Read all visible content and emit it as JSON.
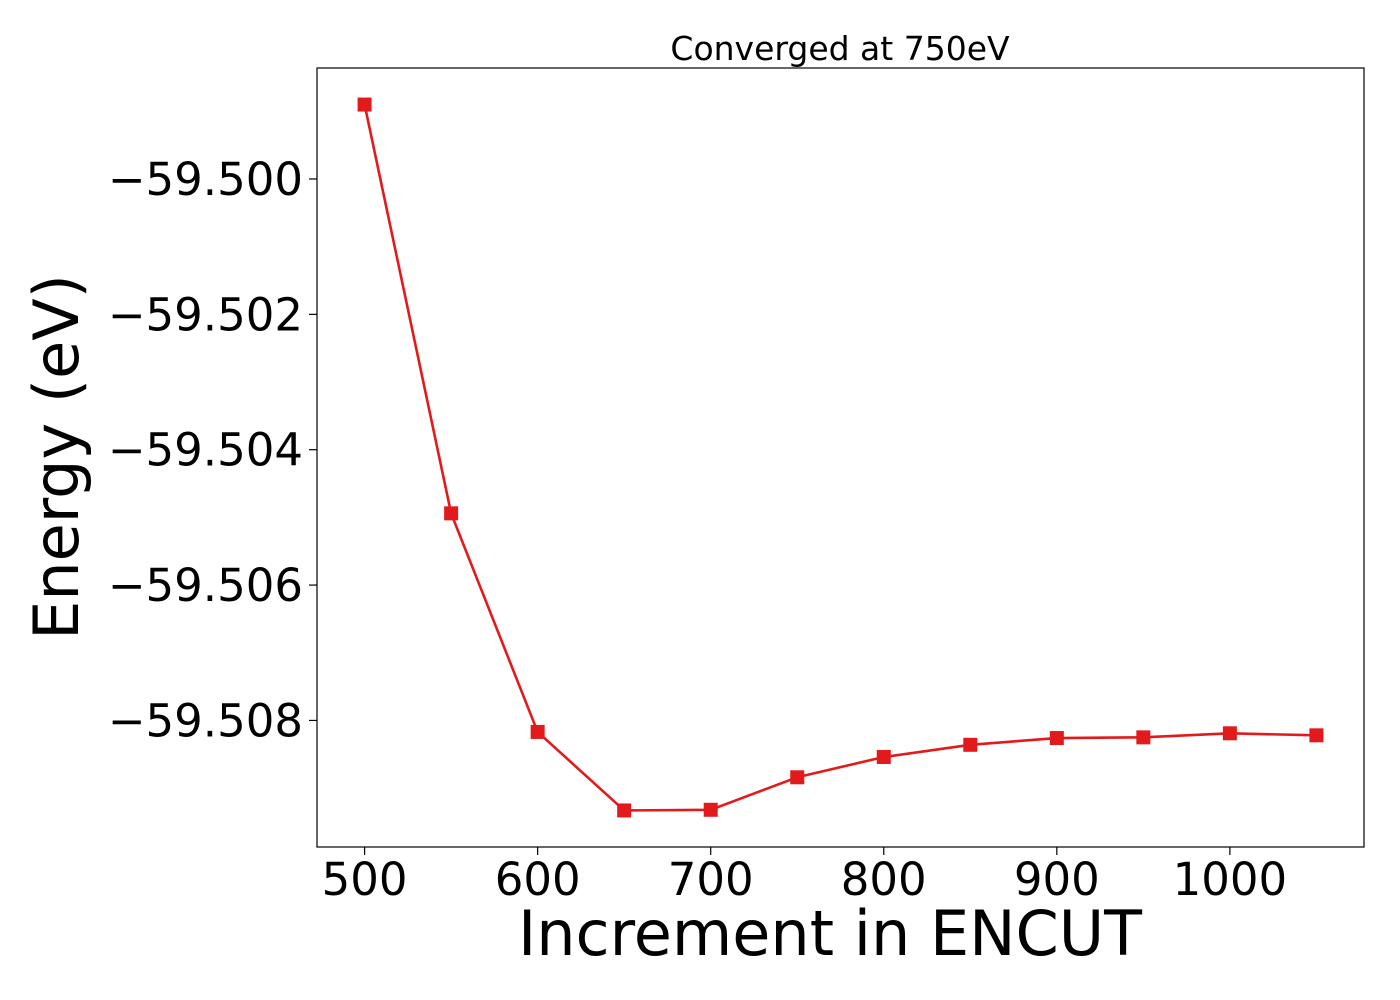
{
  "chart_data": {
    "type": "line",
    "title": "Converged at 750eV",
    "xlabel": "Increment in ENCUT",
    "ylabel": "Energy (eV)",
    "x": [
      500,
      550,
      600,
      650,
      700,
      750,
      800,
      850,
      900,
      950,
      1000,
      1050
    ],
    "series": [
      {
        "values": [
          -59.4989,
          -59.50494,
          -59.50817,
          -59.50933,
          -59.50932,
          -59.50884,
          -59.50854,
          -59.50836,
          -59.50826,
          -59.50825,
          -59.50819,
          -59.50822
        ],
        "color": "#e31a1c",
        "marker": "square"
      }
    ],
    "xlim": [
      472.5,
      1077.5
    ],
    "ylim": [
      -59.50987,
      -59.49836
    ],
    "xticks": [
      500,
      600,
      700,
      800,
      900,
      1000
    ],
    "yticks": [
      -59.5,
      -59.502,
      -59.504,
      -59.506,
      -59.508
    ],
    "xtick_labels": [
      "500",
      "600",
      "700",
      "800",
      "900",
      "1000"
    ],
    "ytick_labels": [
      "−59.500",
      "−59.502",
      "−59.504",
      "−59.506",
      "−59.508"
    ],
    "grid": false,
    "legend": "none"
  }
}
